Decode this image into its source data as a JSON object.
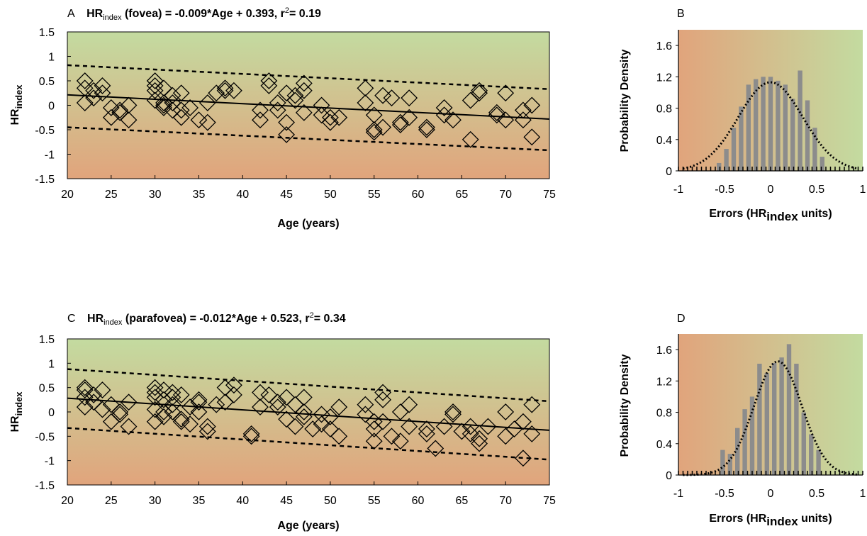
{
  "panels": [
    {
      "letter": "A",
      "title_base": "HR",
      "title_sub": "index",
      "title_rest_pre": " (fovea) = -0.009*Age + 0.393, r",
      "title_sup": "2",
      "title_rest_post": "= 0.19",
      "xlabel": "Age (years)",
      "ylabel_base": "HR",
      "ylabel_sub": "index"
    },
    {
      "letter": "B",
      "xlabel_pre": "Errors (HR",
      "xlabel_sub": "index",
      "xlabel_post": " units)",
      "ylabel": "Probability Density"
    },
    {
      "letter": "C",
      "title_base": "HR",
      "title_sub": "index",
      "title_rest_pre": " (parafovea) = -0.012*Age + 0.523, r",
      "title_sup": "2",
      "title_rest_post": "= 0.34",
      "xlabel": "Age (years)",
      "ylabel_base": "HR",
      "ylabel_sub": "index"
    },
    {
      "letter": "D",
      "xlabel_pre": "Errors (HR",
      "xlabel_sub": "index",
      "xlabel_post": " units)",
      "ylabel": "Probability Density"
    }
  ],
  "colors": {
    "top_green": "#c3dba0",
    "bottom_orange": "#e1a47c",
    "bar": "#8c8c8c",
    "marker": "#000000"
  },
  "chart_data": [
    {
      "type": "scatter",
      "panel": "A",
      "xlim": [
        20,
        75
      ],
      "ylim": [
        -1.5,
        1.5
      ],
      "xticks": [
        "20",
        "25",
        "30",
        "35",
        "40",
        "45",
        "50",
        "55",
        "60",
        "65",
        "70",
        "75"
      ],
      "yticks": [
        "1.5",
        "1",
        "0.5",
        "0",
        "-0.5",
        "-1",
        "-1.5"
      ],
      "marker": "diamond",
      "background": "vertical gradient green (top) to orange (bottom)",
      "fit": {
        "slope": -0.009,
        "intercept": 0.393
      },
      "prediction_band": {
        "upper_at_20": 0.82,
        "upper_at_75": 0.33,
        "lower_at_20": -0.45,
        "lower_at_75": -0.92
      },
      "points": [
        [
          22,
          0.5
        ],
        [
          22,
          0.35
        ],
        [
          22,
          0.05
        ],
        [
          23,
          0.3
        ],
        [
          23,
          0.15
        ],
        [
          24,
          0.4
        ],
        [
          24,
          0.25
        ],
        [
          25,
          -0.05
        ],
        [
          25,
          -0.25
        ],
        [
          26,
          -0.1
        ],
        [
          26,
          -0.15
        ],
        [
          27,
          -0.3
        ],
        [
          27,
          0.0
        ],
        [
          30,
          0.5
        ],
        [
          30,
          0.4
        ],
        [
          30,
          0.3
        ],
        [
          30,
          0.1
        ],
        [
          31,
          0.35
        ],
        [
          31,
          0.05
        ],
        [
          31,
          0.0
        ],
        [
          31,
          -0.05
        ],
        [
          32,
          0.2
        ],
        [
          32,
          0.05
        ],
        [
          32,
          -0.1
        ],
        [
          33,
          0.25
        ],
        [
          33,
          -0.1
        ],
        [
          33,
          -0.25
        ],
        [
          34,
          -0.05
        ],
        [
          35,
          -0.3
        ],
        [
          36,
          0.05
        ],
        [
          36,
          -0.35
        ],
        [
          37,
          0.25
        ],
        [
          38,
          0.35
        ],
        [
          38,
          0.3
        ],
        [
          39,
          0.3
        ],
        [
          42,
          -0.1
        ],
        [
          42,
          -0.3
        ],
        [
          43,
          0.5
        ],
        [
          43,
          0.4
        ],
        [
          44,
          0.05
        ],
        [
          44,
          -0.1
        ],
        [
          45,
          0.25
        ],
        [
          45,
          -0.35
        ],
        [
          45,
          -0.6
        ],
        [
          46,
          0.2
        ],
        [
          46,
          0.1
        ],
        [
          47,
          0.3
        ],
        [
          47,
          0.45
        ],
        [
          47,
          -0.15
        ],
        [
          49,
          0.0
        ],
        [
          49,
          -0.2
        ],
        [
          50,
          -0.35
        ],
        [
          50,
          -0.25
        ],
        [
          51,
          -0.25
        ],
        [
          54,
          0.35
        ],
        [
          54,
          0.05
        ],
        [
          55,
          -0.2
        ],
        [
          55,
          -0.5
        ],
        [
          55,
          -0.55
        ],
        [
          56,
          -0.45
        ],
        [
          56,
          0.2
        ],
        [
          57,
          0.15
        ],
        [
          58,
          -0.35
        ],
        [
          58,
          -0.4
        ],
        [
          59,
          -0.25
        ],
        [
          59,
          0.15
        ],
        [
          61,
          -0.45
        ],
        [
          61,
          -0.5
        ],
        [
          63,
          -0.05
        ],
        [
          63,
          -0.2
        ],
        [
          64,
          -0.3
        ],
        [
          66,
          0.1
        ],
        [
          66,
          -0.7
        ],
        [
          67,
          0.3
        ],
        [
          67,
          0.25
        ],
        [
          69,
          -0.2
        ],
        [
          69,
          -0.15
        ],
        [
          70,
          0.25
        ],
        [
          70,
          -0.3
        ],
        [
          72,
          -0.1
        ],
        [
          72,
          -0.3
        ],
        [
          73,
          0.0
        ],
        [
          73,
          -0.65
        ]
      ]
    },
    {
      "type": "bar",
      "panel": "B",
      "xlim": [
        -1,
        1
      ],
      "ylim": [
        0,
        1.8
      ],
      "xticks": [
        "-1",
        "-0.5",
        "0",
        "0.5",
        "1"
      ],
      "yticks": [
        "0",
        "0.4",
        "0.8",
        "1.2",
        "1.6"
      ],
      "bin_width": 0.08,
      "bin_centers": [
        -0.56,
        -0.48,
        -0.4,
        -0.32,
        -0.24,
        -0.16,
        -0.08,
        0.0,
        0.08,
        0.16,
        0.24,
        0.32,
        0.4,
        0.48,
        0.56
      ],
      "values": [
        0.1,
        0.28,
        0.55,
        0.82,
        1.1,
        1.17,
        1.2,
        1.2,
        1.15,
        1.1,
        0.92,
        1.28,
        0.9,
        0.55,
        0.18
      ],
      "normal_fit": {
        "mean": 0.0,
        "peak": 1.13,
        "sd": 0.35
      }
    },
    {
      "type": "scatter",
      "panel": "C",
      "xlim": [
        20,
        75
      ],
      "ylim": [
        -1.5,
        1.5
      ],
      "xticks": [
        "20",
        "25",
        "30",
        "35",
        "40",
        "45",
        "50",
        "55",
        "60",
        "65",
        "70",
        "75"
      ],
      "yticks": [
        "1.5",
        "1",
        "0.5",
        "0",
        "-0.5",
        "-1",
        "-1.5"
      ],
      "marker": "diamond",
      "background": "vertical gradient green (top) to orange (bottom)",
      "fit": {
        "slope": -0.012,
        "intercept": 0.523
      },
      "prediction_band": {
        "upper_at_20": 0.88,
        "upper_at_75": 0.22,
        "lower_at_20": -0.33,
        "lower_at_75": -0.98
      },
      "points": [
        [
          22,
          0.5
        ],
        [
          22,
          0.45
        ],
        [
          22,
          0.3
        ],
        [
          22,
          0.1
        ],
        [
          23,
          0.35
        ],
        [
          23,
          0.2
        ],
        [
          24,
          0.45
        ],
        [
          24,
          0.05
        ],
        [
          25,
          0.15
        ],
        [
          25,
          -0.2
        ],
        [
          26,
          -0.05
        ],
        [
          26,
          0.0
        ],
        [
          27,
          -0.3
        ],
        [
          27,
          0.2
        ],
        [
          30,
          0.5
        ],
        [
          30,
          0.4
        ],
        [
          30,
          0.3
        ],
        [
          30,
          0.05
        ],
        [
          30,
          -0.2
        ],
        [
          31,
          0.45
        ],
        [
          31,
          0.25
        ],
        [
          31,
          0.0
        ],
        [
          31,
          -0.1
        ],
        [
          32,
          0.4
        ],
        [
          32,
          0.3
        ],
        [
          32,
          0.15
        ],
        [
          32,
          0.0
        ],
        [
          33,
          0.35
        ],
        [
          33,
          -0.15
        ],
        [
          33,
          -0.2
        ],
        [
          34,
          0.1
        ],
        [
          34,
          -0.25
        ],
        [
          35,
          0.25
        ],
        [
          35,
          0.2
        ],
        [
          35,
          0.0
        ],
        [
          36,
          -0.3
        ],
        [
          36,
          -0.4
        ],
        [
          37,
          0.15
        ],
        [
          38,
          0.2
        ],
        [
          38,
          0.5
        ],
        [
          39,
          0.55
        ],
        [
          39,
          0.35
        ],
        [
          41,
          -0.45
        ],
        [
          41,
          -0.5
        ],
        [
          42,
          0.4
        ],
        [
          42,
          0.1
        ],
        [
          43,
          0.35
        ],
        [
          44,
          0.2
        ],
        [
          44,
          0.1
        ],
        [
          45,
          0.3
        ],
        [
          45,
          -0.15
        ],
        [
          46,
          0.15
        ],
        [
          46,
          -0.3
        ],
        [
          47,
          0.3
        ],
        [
          47,
          0.0
        ],
        [
          47,
          -0.1
        ],
        [
          48,
          -0.35
        ],
        [
          49,
          -0.25
        ],
        [
          49,
          -0.05
        ],
        [
          50,
          -0.1
        ],
        [
          50,
          -0.35
        ],
        [
          51,
          0.1
        ],
        [
          51,
          -0.5
        ],
        [
          54,
          0.15
        ],
        [
          54,
          -0.05
        ],
        [
          55,
          -0.2
        ],
        [
          55,
          -0.35
        ],
        [
          55,
          -0.6
        ],
        [
          56,
          0.4
        ],
        [
          56,
          0.25
        ],
        [
          56,
          -0.2
        ],
        [
          57,
          -0.5
        ],
        [
          58,
          0.0
        ],
        [
          58,
          -0.6
        ],
        [
          59,
          0.15
        ],
        [
          59,
          -0.3
        ],
        [
          61,
          -0.35
        ],
        [
          61,
          -0.45
        ],
        [
          62,
          -0.75
        ],
        [
          63,
          -0.3
        ],
        [
          64,
          0.0
        ],
        [
          64,
          -0.05
        ],
        [
          65,
          -0.4
        ],
        [
          66,
          -0.3
        ],
        [
          66,
          -0.45
        ],
        [
          67,
          -0.55
        ],
        [
          67,
          -0.65
        ],
        [
          68,
          -0.3
        ],
        [
          70,
          0.0
        ],
        [
          70,
          -0.5
        ],
        [
          71,
          -0.35
        ],
        [
          72,
          -0.2
        ],
        [
          72,
          -0.95
        ],
        [
          73,
          0.15
        ],
        [
          73,
          -0.45
        ]
      ]
    },
    {
      "type": "bar",
      "panel": "D",
      "xlim": [
        -1,
        1
      ],
      "ylim": [
        0,
        1.8
      ],
      "xticks": [
        "-1",
        "-0.5",
        "0",
        "0.5",
        "1"
      ],
      "yticks": [
        "0",
        "0.4",
        "0.8",
        "1.2",
        "1.6"
      ],
      "bin_width": 0.08,
      "bin_centers": [
        -0.52,
        -0.44,
        -0.36,
        -0.28,
        -0.2,
        -0.12,
        -0.04,
        0.04,
        0.12,
        0.2,
        0.28,
        0.36,
        0.44,
        0.52
      ],
      "values": [
        0.32,
        0.27,
        0.6,
        0.84,
        1.0,
        1.42,
        1.3,
        1.43,
        1.5,
        1.67,
        1.42,
        0.8,
        0.52,
        0.32
      ],
      "normal_fit": {
        "mean": 0.08,
        "peak": 1.45,
        "sd": 0.26
      }
    }
  ]
}
